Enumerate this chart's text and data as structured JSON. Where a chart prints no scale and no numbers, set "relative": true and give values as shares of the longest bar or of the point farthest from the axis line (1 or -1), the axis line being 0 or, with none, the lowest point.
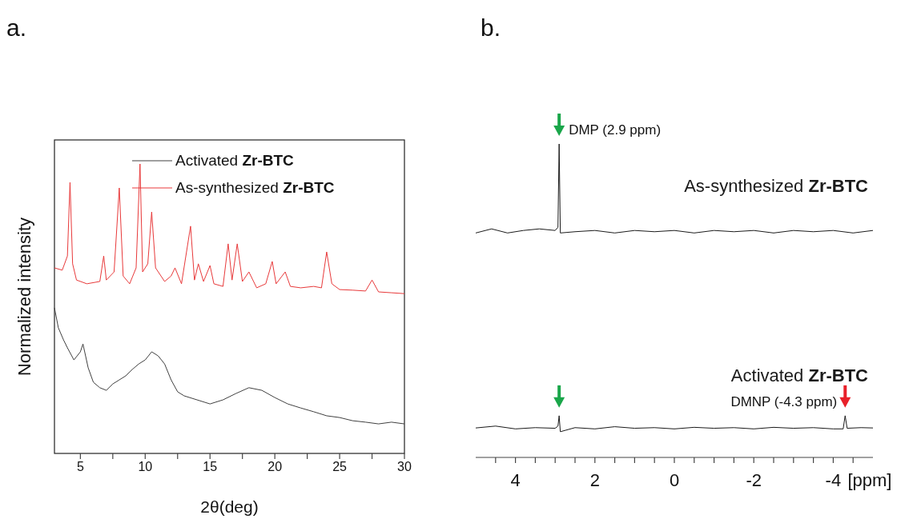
{
  "chart_data": [
    {
      "type": "line",
      "title": "a.",
      "xlabel": "2θ(deg)",
      "ylabel": "Normalized intensity",
      "relative": true,
      "xlim": [
        3,
        30
      ],
      "xticks": [
        5,
        {
          "value": 7.5,
          "label": null
        },
        10,
        {
          "value": 12.5,
          "label": null
        },
        15,
        {
          "value": 17.5,
          "label": null
        },
        20,
        {
          "value": 22.5,
          "label": null
        },
        25,
        {
          "value": 27.5,
          "label": null
        },
        30
      ],
      "tick_labels": "x",
      "legend": "top right",
      "series": [
        {
          "name": "Activated Zr-BTC",
          "color": "#404040",
          "x": [
            3.0,
            3.3,
            3.7,
            4.0,
            4.5,
            5.0,
            5.2,
            5.6,
            6.0,
            6.5,
            7.0,
            7.5,
            8.0,
            8.5,
            9.0,
            9.5,
            10.0,
            10.5,
            11.0,
            11.5,
            12.0,
            12.5,
            13.0,
            14.0,
            15.0,
            16.0,
            17.0,
            18.0,
            19.0,
            20.0,
            21.0,
            22.0,
            23.0,
            24.0,
            25.0,
            26.0,
            27.0,
            28.0,
            29.0,
            30.0
          ],
          "values": [
            0.503,
            0.434,
            0.392,
            0.365,
            0.323,
            0.351,
            0.378,
            0.296,
            0.246,
            0.227,
            0.218,
            0.24,
            0.254,
            0.268,
            0.29,
            0.309,
            0.323,
            0.351,
            0.337,
            0.309,
            0.254,
            0.213,
            0.199,
            0.185,
            0.171,
            0.185,
            0.207,
            0.227,
            0.218,
            0.193,
            0.171,
            0.157,
            0.144,
            0.13,
            0.124,
            0.113,
            0.108,
            0.102,
            0.108,
            0.102
          ]
        },
        {
          "name": "As-synthesized Zr-BTC",
          "color": "#e8393a",
          "x": [
            3.0,
            3.6,
            4.0,
            4.2,
            4.4,
            4.7,
            5.5,
            6.5,
            6.8,
            7.0,
            7.6,
            8.0,
            8.3,
            8.8,
            9.3,
            9.6,
            9.8,
            10.2,
            10.5,
            10.8,
            11.5,
            12.0,
            12.3,
            12.8,
            13.5,
            13.8,
            14.1,
            14.5,
            15.0,
            15.3,
            16.0,
            16.4,
            16.7,
            17.1,
            17.5,
            18.0,
            18.6,
            19.3,
            19.8,
            20.1,
            20.8,
            21.2,
            22.0,
            23.0,
            23.6,
            24.0,
            24.4,
            25.0,
            26.0,
            27.0,
            27.5,
            28.0,
            29.0,
            30.0
          ],
          "values": [
            0.641,
            0.633,
            0.682,
            0.936,
            0.655,
            0.599,
            0.586,
            0.594,
            0.682,
            0.599,
            0.627,
            0.917,
            0.613,
            0.586,
            0.641,
            1,
            0.627,
            0.655,
            0.834,
            0.641,
            0.594,
            0.613,
            0.641,
            0.586,
            0.785,
            0.599,
            0.655,
            0.594,
            0.649,
            0.586,
            0.577,
            0.724,
            0.599,
            0.724,
            0.594,
            0.627,
            0.572,
            0.586,
            0.663,
            0.586,
            0.627,
            0.577,
            0.572,
            0.577,
            0.572,
            0.696,
            0.586,
            0.566,
            0.564,
            0.561,
            0.599,
            0.558,
            0.555,
            0.552
          ]
        }
      ]
    },
    {
      "type": "line",
      "title": "b.",
      "xlabel": "[ppm]",
      "relative": true,
      "xlim": [
        5,
        -5
      ],
      "xticks": [
        {
          "value": 4.5,
          "label": null
        },
        4,
        {
          "value": 3.5,
          "label": null
        },
        {
          "value": 3,
          "label": null
        },
        {
          "value": 2.5,
          "label": null
        },
        2,
        {
          "value": 1.5,
          "label": null
        },
        {
          "value": 1,
          "label": null
        },
        {
          "value": 0.5,
          "label": null
        },
        0,
        {
          "value": -0.5,
          "label": null
        },
        {
          "value": -1,
          "label": null
        },
        {
          "value": -1.5,
          "label": null
        },
        -2,
        {
          "value": -2.5,
          "label": null
        },
        {
          "value": -3,
          "label": null
        },
        {
          "value": -3.5,
          "label": null
        },
        -4,
        {
          "value": -4.5,
          "label": null
        }
      ],
      "tick_labels": "x",
      "legend": false,
      "annotations": [
        {
          "text": "DMP (2.9 ppm)",
          "x": 2.9,
          "y": 1
        },
        {
          "text": "DMNP (-4.3 ppm)",
          "x": -4.3,
          "y": 0.133
        }
      ],
      "series": [
        {
          "name": "As-synthesized Zr-BTC",
          "color": "#1a1a1a",
          "x": [
            5,
            4.6,
            4.2,
            3.8,
            3.4,
            3.0,
            2.93,
            2.9,
            2.87,
            2.5,
            2,
            1.5,
            1,
            0.5,
            0,
            -0.5,
            -1,
            -1.5,
            -2,
            -2.5,
            -3,
            -3.5,
            -4,
            -4.5,
            -5
          ],
          "values": [
            0.716,
            0.729,
            0.716,
            0.724,
            0.729,
            0.724,
            0.734,
            1,
            0.716,
            0.72,
            0.724,
            0.716,
            0.724,
            0.72,
            0.724,
            0.716,
            0.724,
            0.72,
            0.724,
            0.716,
            0.724,
            0.72,
            0.724,
            0.716,
            0.724
          ]
        },
        {
          "name": "Activated Zr-BTC",
          "color": "#1a1a1a",
          "x": [
            5,
            4.5,
            4,
            3.5,
            3.0,
            2.93,
            2.9,
            2.87,
            2.5,
            2,
            1.5,
            1,
            0.5,
            0,
            -0.5,
            -1,
            -1.5,
            -2,
            -2.5,
            -3,
            -3.5,
            -4,
            -4.25,
            -4.3,
            -4.35,
            -4.7,
            -5
          ],
          "values": [
            0.094,
            0.1,
            0.091,
            0.095,
            0.093,
            0.1,
            0.133,
            0.082,
            0.095,
            0.091,
            0.098,
            0.093,
            0.095,
            0.091,
            0.096,
            0.093,
            0.095,
            0.091,
            0.096,
            0.093,
            0.095,
            0.091,
            0.091,
            0.133,
            0.093,
            0.095,
            0.094
          ]
        }
      ]
    }
  ]
}
